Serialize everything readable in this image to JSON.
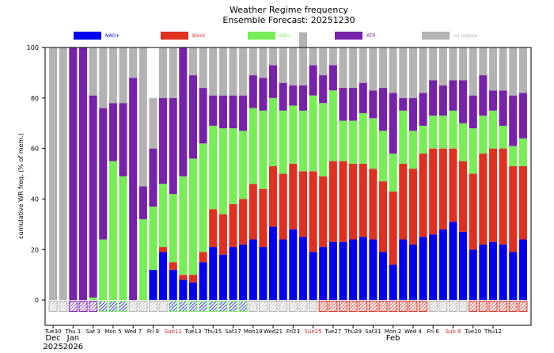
{
  "chart_data": {
    "type": "bar",
    "stacked": true,
    "title": "Weather Regime frequency",
    "subtitle": "Ensemble Forecast: 20251230",
    "ylabel": "cumulative WR freq. (% of mem.)",
    "xlabel": "",
    "ylim": [
      -10,
      100
    ],
    "yticks": [
      0,
      20,
      40,
      60,
      80,
      100
    ],
    "grid": false,
    "legend_position": "top",
    "x_tick_labels": [
      {
        "day": 0,
        "text": "Tue30",
        "color": "#000000"
      },
      {
        "day": 2,
        "text": "Thu 1",
        "color": "#000000"
      },
      {
        "day": 4,
        "text": "Sat 3",
        "color": "#000000"
      },
      {
        "day": 6,
        "text": "Mon 5",
        "color": "#000000"
      },
      {
        "day": 8,
        "text": "Wed 7",
        "color": "#000000"
      },
      {
        "day": 10,
        "text": "Fri 9",
        "color": "#000000"
      },
      {
        "day": 12,
        "text": "Sun11",
        "color": "#d62728"
      },
      {
        "day": 14,
        "text": "Tue13",
        "color": "#000000"
      },
      {
        "day": 16,
        "text": "Thu15",
        "color": "#000000"
      },
      {
        "day": 18,
        "text": "Sat17",
        "color": "#000000"
      },
      {
        "day": 20,
        "text": "Mon19",
        "color": "#000000"
      },
      {
        "day": 22,
        "text": "Wed21",
        "color": "#000000"
      },
      {
        "day": 24,
        "text": "Fri23",
        "color": "#000000"
      },
      {
        "day": 26,
        "text": "Sun25",
        "color": "#d62728"
      },
      {
        "day": 28,
        "text": "Tue27",
        "color": "#000000"
      },
      {
        "day": 30,
        "text": "Thu29",
        "color": "#000000"
      },
      {
        "day": 32,
        "text": "Sat31",
        "color": "#000000"
      },
      {
        "day": 34,
        "text": "Mon 2",
        "color": "#000000"
      },
      {
        "day": 36,
        "text": "Wed 4",
        "color": "#000000"
      },
      {
        "day": 38,
        "text": "Fri 6",
        "color": "#000000"
      },
      {
        "day": 40,
        "text": "Sun 8",
        "color": "#d62728"
      },
      {
        "day": 42,
        "text": "Tue10",
        "color": "#000000"
      },
      {
        "day": 44,
        "text": "Thu12",
        "color": "#000000"
      }
    ],
    "month_labels": [
      {
        "day": 0,
        "text": "Dec"
      },
      {
        "day": 2,
        "text": "Jan"
      },
      {
        "day": 34,
        "text": "Feb"
      }
    ],
    "year_labels": [
      {
        "day": 0,
        "text": "2025"
      },
      {
        "day": 2,
        "text": "2026"
      }
    ],
    "series": [
      {
        "name": "NAO+",
        "color": "#0000ee",
        "values": [
          0,
          0,
          0,
          0,
          0,
          0,
          0,
          0,
          0,
          0,
          12,
          19,
          12,
          8,
          7,
          15,
          21,
          18,
          21,
          22,
          24,
          21,
          29,
          24,
          28,
          25,
          19,
          21,
          23,
          23,
          24,
          25,
          24,
          19,
          14,
          24,
          22,
          25,
          26,
          28,
          31,
          27,
          20,
          22,
          23,
          22,
          19,
          24
        ]
      },
      {
        "name": "Block",
        "color": "#e03020",
        "values": [
          0,
          0,
          0,
          0,
          0,
          0,
          0,
          0,
          0,
          0,
          0,
          2,
          3,
          2,
          3,
          4,
          15,
          16,
          17,
          18,
          22,
          23,
          24,
          26,
          26,
          26,
          32,
          28,
          32,
          32,
          30,
          29,
          28,
          28,
          29,
          30,
          30,
          33,
          34,
          32,
          29,
          28,
          30,
          36,
          37,
          38,
          34,
          29
        ]
      },
      {
        "name": "NAO-",
        "color": "#77ee55",
        "values": [
          0,
          0,
          0,
          0,
          1,
          24,
          55,
          49,
          0,
          32,
          25,
          25,
          27,
          39,
          46,
          43,
          33,
          34,
          30,
          27,
          30,
          31,
          27,
          25,
          23,
          24,
          30,
          29,
          28,
          16,
          17,
          20,
          20,
          20,
          15,
          21,
          15,
          11,
          13,
          13,
          15,
          15,
          18,
          15,
          15,
          9,
          8,
          11
        ]
      },
      {
        "name": "ATR",
        "color": "#7722aa",
        "values": [
          0,
          0,
          100,
          100,
          80,
          52,
          23,
          29,
          88,
          13,
          23,
          34,
          38,
          51,
          33,
          22,
          12,
          13,
          13,
          14,
          13,
          13,
          13,
          11,
          8,
          10,
          12,
          11,
          10,
          13,
          13,
          12,
          11,
          17,
          24,
          5,
          13,
          13,
          14,
          12,
          12,
          17,
          13,
          16,
          8,
          14,
          20,
          18
        ]
      },
      {
        "name": "no regime",
        "color": "#b3b3b3",
        "values": [
          100,
          100,
          0,
          0,
          19,
          24,
          22,
          22,
          12,
          55,
          20,
          20,
          20,
          0,
          11,
          16,
          19,
          19,
          19,
          19,
          11,
          12,
          7,
          14,
          15,
          21,
          7,
          11,
          7,
          16,
          16,
          14,
          17,
          16,
          18,
          20,
          20,
          18,
          13,
          15,
          13,
          13,
          19,
          11,
          17,
          17,
          19,
          18
        ]
      }
    ],
    "bottom_markers": [
      "no regime",
      "no regime",
      "ATR",
      "ATR",
      "ATR",
      "NAO-",
      "NAO-",
      "NAO-",
      "no regime",
      "no regime",
      "no regime",
      "no regime",
      "NAO-",
      "NAO-",
      "NAO-",
      "NAO-",
      "NAO-",
      "NAO-",
      "NAO-",
      "NAO-",
      "no regime",
      "no regime",
      "no regime",
      "no regime",
      "no regime",
      "no regime",
      "no regime",
      "Block",
      "Block",
      "Block",
      "Block",
      "Block",
      "Block",
      "Block",
      "Block",
      "Block",
      "Block",
      "Block",
      "no regime",
      "no regime",
      "no regime",
      "no regime",
      "Block",
      "Block",
      "Block",
      "Block",
      "Block",
      "Block"
    ]
  }
}
